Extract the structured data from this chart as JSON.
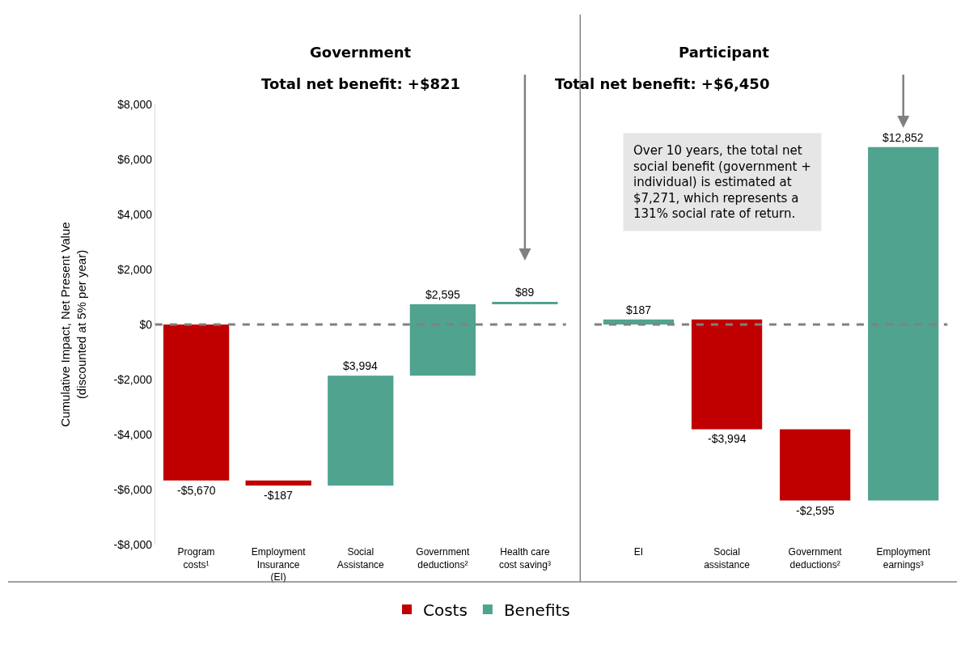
{
  "chart_data": [
    {
      "type": "bar",
      "title": "Government",
      "subtitle": "Total net benefit: +$821",
      "ylabel": "Cumulative Impact, Net Present Value\n(discounted at 5% per year)",
      "categories": [
        "Program costs¹",
        "Employment Insurance (EI)",
        "Social Assistance",
        "Government deductions²",
        "Health care cost saving³"
      ],
      "series": [
        {
          "name": "Costs",
          "color": "#c00000",
          "base": [
            0,
            -5670,
            null,
            null,
            null
          ],
          "values": [
            -5670,
            -187,
            null,
            null,
            null
          ],
          "value_labels": [
            "-$5,670",
            "-$187",
            null,
            null,
            null
          ]
        },
        {
          "name": "Benefits",
          "color": "#4fa38f",
          "base": [
            null,
            null,
            -5857,
            -1863,
            732
          ],
          "values": [
            null,
            null,
            3994,
            2595,
            89
          ],
          "value_labels": [
            null,
            null,
            "$3,994",
            "$2,595",
            "$89"
          ]
        }
      ],
      "ylim": [
        -8000,
        8000
      ],
      "yticks": [
        {
          "value": -8000,
          "label": "-$8,000"
        },
        {
          "value": -6000,
          "label": "-$6,000"
        },
        {
          "value": -4000,
          "label": "-$4,000"
        },
        {
          "value": -2000,
          "label": "-$2,000"
        },
        {
          "value": 0,
          "label": "$0"
        },
        {
          "value": 2000,
          "label": "$2,000"
        },
        {
          "value": 4000,
          "label": "$4,000"
        },
        {
          "value": 6000,
          "label": "$6,000"
        },
        {
          "value": 8000,
          "label": "$8,000"
        }
      ],
      "ref_lines": [
        {
          "axis": "y",
          "value": 0,
          "color": "#808080",
          "line_style": "dashed"
        }
      ],
      "legend": "bottom"
    },
    {
      "type": "bar",
      "title": "Participant",
      "subtitle": "Total net benefit: +$6,450",
      "categories": [
        "EI",
        "Social assistance",
        "Government deductions²",
        "Employment earnings³"
      ],
      "series": [
        {
          "color": "#c00000",
          "base": [
            null,
            187,
            -3807,
            null
          ],
          "values": [
            null,
            -3994,
            -2595,
            null
          ],
          "value_labels": [
            null,
            "-$3,994",
            "-$2,595",
            null
          ]
        },
        {
          "color": "#4fa38f",
          "base": [
            0,
            null,
            null,
            -6402
          ],
          "values": [
            187,
            null,
            null,
            12852
          ],
          "value_labels": [
            "$187",
            null,
            null,
            "$12,852"
          ]
        }
      ],
      "ylim": [
        -8000,
        8000
      ],
      "ref_lines": [
        {
          "axis": "y",
          "value": 0,
          "color": "#808080",
          "line_style": "dashed"
        }
      ],
      "annotations": [
        "Over 10 years, the total net social benefit (government + individual) is estimated at $7,271, which represents a 131% social rate of return."
      ],
      "tick_labels": "x"
    }
  ]
}
